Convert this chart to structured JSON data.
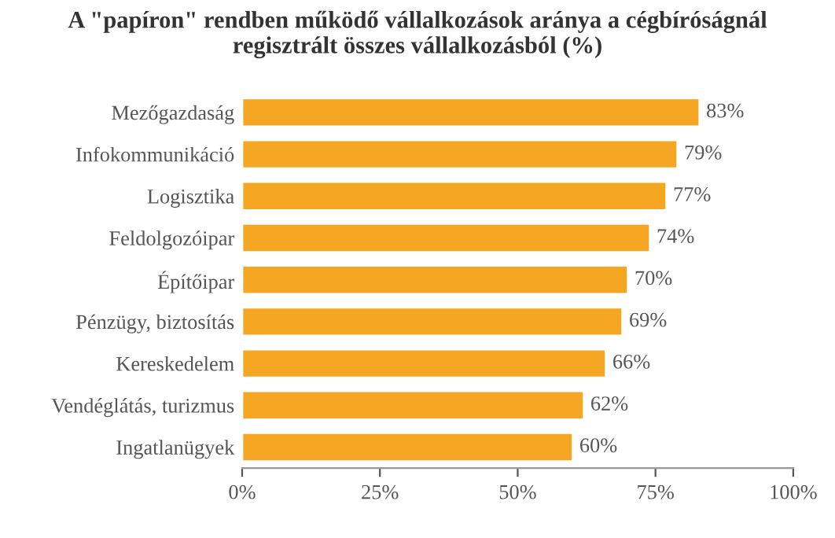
{
  "chart_data": {
    "type": "bar",
    "orientation": "horizontal",
    "title": "A \"papíron\" rendben működő vállalkozások aránya a cégbíróságnál\nregisztrált összes vállalkozásból (%)",
    "categories": [
      "Mezőgazdaság",
      "Infokommunikáció",
      "Logisztika",
      "Feldolgozóipar",
      "Építőipar",
      "Pénzügy, biztosítás",
      "Kereskedelem",
      "Vendéglátás, turizmus",
      "Ingatlanügyek"
    ],
    "values": [
      83,
      79,
      77,
      74,
      70,
      69,
      66,
      62,
      60
    ],
    "value_labels": [
      "83%",
      "79%",
      "77%",
      "74%",
      "70%",
      "69%",
      "66%",
      "62%",
      "60%"
    ],
    "color": "#f5a623",
    "xlim": [
      0,
      100
    ],
    "xticks": [
      {
        "value": 0,
        "label": "0%"
      },
      {
        "value": 25,
        "label": "25%"
      },
      {
        "value": 50,
        "label": "50%"
      },
      {
        "value": 75,
        "label": "75%"
      },
      {
        "value": 100,
        "label": "100%"
      }
    ],
    "grid": false
  }
}
